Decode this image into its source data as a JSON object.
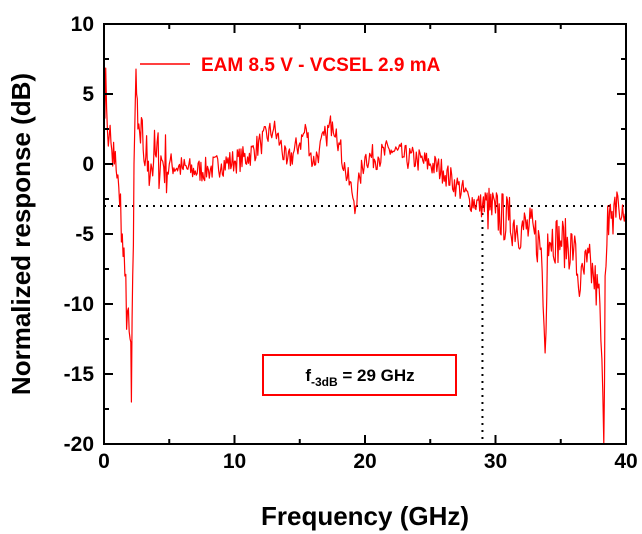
{
  "chart_data": {
    "type": "line",
    "xlabel": "Frequency (GHz)",
    "ylabel": "Normalized response (dB)",
    "xlim": [
      0,
      40
    ],
    "ylim": [
      -20,
      10
    ],
    "xticks": [
      "0",
      "10",
      "20",
      "30",
      "40"
    ],
    "yticks": [
      "10",
      "5",
      "0",
      "-5",
      "-10",
      "-15",
      "-20"
    ],
    "grid": false,
    "legend_position": "top-left",
    "colors": {
      "series": "#ff0000",
      "axes": "#000000",
      "reference": "#000000"
    },
    "series": [
      {
        "name": "EAM 8.5 V - VCSEL 2.9 mA",
        "x": [
          0,
          0.2,
          0.4,
          0.6,
          0.8,
          1.0,
          1.2,
          1.4,
          1.6,
          1.8,
          2.0,
          2.1,
          2.2,
          2.3,
          2.4,
          2.5,
          2.6,
          2.8,
          3.0,
          3.2,
          3.4,
          3.6,
          3.8,
          4.0,
          4.5,
          5.0,
          6.0,
          7.0,
          8.0,
          9.0,
          10.0,
          11.0,
          12.0,
          13.0,
          13.5,
          14.0,
          15.0,
          15.5,
          16.0,
          16.5,
          17.0,
          17.5,
          17.8,
          18.0,
          18.5,
          19.0,
          19.3,
          19.6,
          20.0,
          21.0,
          22.0,
          23.0,
          24.0,
          25.0,
          26.0,
          27.0,
          28.0,
          29.0,
          30.0,
          31.0,
          32.0,
          33.0,
          33.5,
          33.8,
          34.0,
          35.0,
          36.0,
          36.5,
          37.0,
          37.5,
          38.0,
          38.3,
          38.4,
          38.6,
          39.0,
          39.3,
          39.6,
          40.0
        ],
        "y": [
          6.5,
          4.0,
          2.0,
          1.0,
          0.0,
          -1.0,
          -3.0,
          -5.0,
          -8.0,
          -10.5,
          -12.5,
          -17.0,
          -8.0,
          0.0,
          4.5,
          5.0,
          2.5,
          1.5,
          1.0,
          0.5,
          0.2,
          0.0,
          0.2,
          0.5,
          0.2,
          0.0,
          -0.3,
          -0.5,
          -0.4,
          0.0,
          0.2,
          0.5,
          1.5,
          2.5,
          1.5,
          0.0,
          1.5,
          2.5,
          0.0,
          1.0,
          2.0,
          3.0,
          2.5,
          1.5,
          -0.5,
          -2.0,
          -3.0,
          -1.0,
          0.5,
          0.5,
          1.0,
          0.5,
          0.3,
          0.0,
          -0.5,
          -1.5,
          -2.5,
          -3.0,
          -3.5,
          -4.0,
          -4.5,
          -5.0,
          -6.0,
          -13.5,
          -5.0,
          -5.5,
          -6.0,
          -9.0,
          -7.0,
          -8.0,
          -10.0,
          -20.0,
          -8.0,
          -3.0,
          -5.0,
          -2.0,
          -4.0,
          -3.5
        ]
      }
    ],
    "reference_level_db": -3,
    "bandwidth_ghz": 29,
    "annotation": {
      "main": "f",
      "sub": "-3dB",
      "suffix": " = 29 GHz"
    }
  }
}
